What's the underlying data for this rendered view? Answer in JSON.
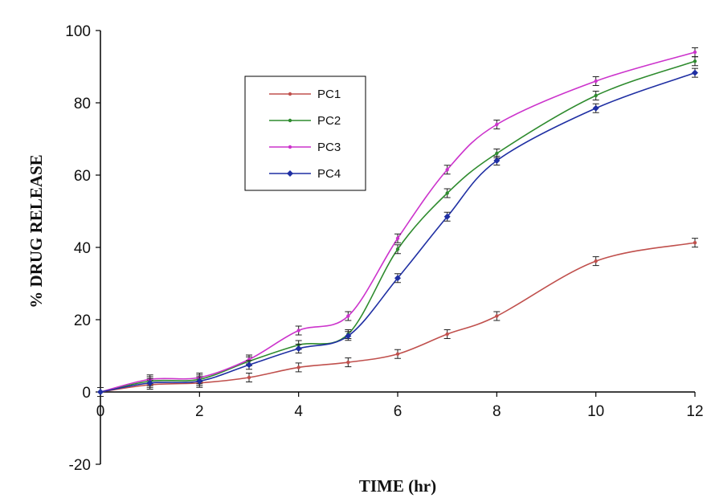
{
  "chart_data": {
    "type": "line",
    "title": "",
    "xlabel": "TIME (hr)",
    "ylabel": "% DRUG RELEASE",
    "xlim": [
      0,
      12
    ],
    "ylim": [
      -20,
      100
    ],
    "xticks": [
      0,
      2,
      4,
      6,
      8,
      10,
      12
    ],
    "yticks": [
      -20,
      0,
      20,
      40,
      60,
      80,
      100
    ],
    "grid": false,
    "legend_position": "upper-left-center",
    "x": [
      0,
      1,
      2,
      3,
      4,
      5,
      6,
      7,
      8,
      10,
      12
    ],
    "series": [
      {
        "name": "PC1",
        "color": "#c0504d",
        "marker": "dot",
        "values": [
          0,
          2,
          2.5,
          4,
          6.8,
          8.2,
          10.5,
          16,
          21,
          36.2,
          41.3
        ]
      },
      {
        "name": "PC2",
        "color": "#2e8b2e",
        "marker": "dot",
        "values": [
          0,
          3,
          3.5,
          8.5,
          13,
          16,
          39.5,
          55,
          66,
          82,
          91.5
        ]
      },
      {
        "name": "PC3",
        "color": "#cc33cc",
        "marker": "dot",
        "values": [
          0,
          3.5,
          4,
          9,
          17,
          21,
          42.5,
          61.5,
          74,
          86,
          94
        ]
      },
      {
        "name": "PC4",
        "color": "#1f2fa3",
        "marker": "diamond",
        "values": [
          0,
          2.5,
          3,
          7.5,
          12,
          15.5,
          31.5,
          48.5,
          64,
          78.5,
          88.3
        ]
      }
    ]
  }
}
